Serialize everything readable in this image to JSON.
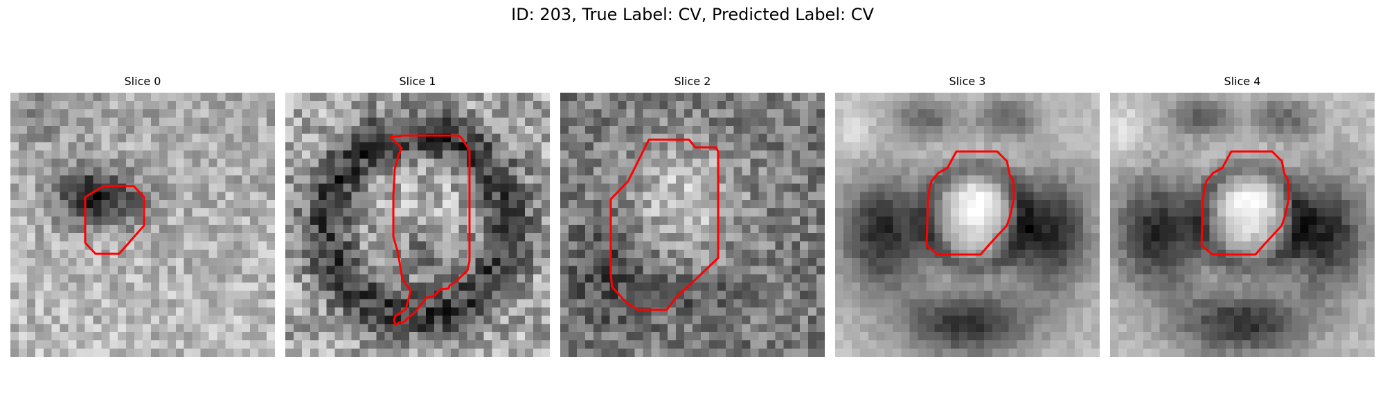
{
  "figure": {
    "title": "ID: 203, True Label: CV, Predicted Label: CV"
  },
  "panels": [
    {
      "title": "Slice 0"
    },
    {
      "title": "Slice 1"
    },
    {
      "title": "Slice 2"
    },
    {
      "title": "Slice 3"
    },
    {
      "title": "Slice 4"
    }
  ],
  "colors": {
    "contour": "#ff0000",
    "background": "#ffffff"
  }
}
